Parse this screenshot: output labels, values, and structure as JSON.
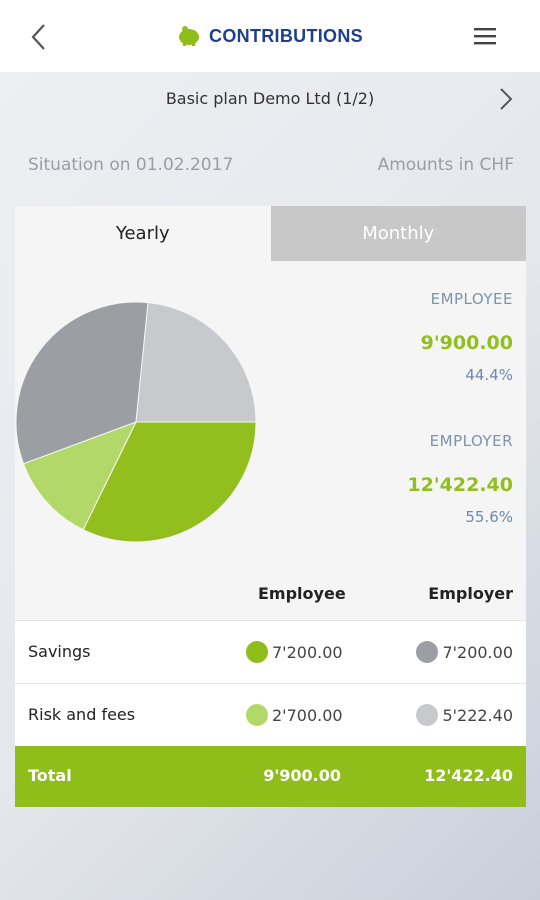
{
  "header": {
    "title": "CONTRIBUTIONS",
    "back_icon": "chevron-left-icon",
    "logo_icon": "piggy-bank-icon",
    "menu_icon": "hamburger-menu-icon"
  },
  "plan": {
    "name": "Basic plan Demo Ltd (1/2)",
    "next_icon": "chevron-right-icon"
  },
  "info": {
    "situation": "Situation on 01.02.2017",
    "amounts": "Amounts in CHF"
  },
  "tabs": [
    {
      "label": "Yearly",
      "active": true
    },
    {
      "label": "Monthly",
      "active": false
    }
  ],
  "summary": {
    "employee": {
      "label": "EMPLOYEE",
      "amount": "9'900.00",
      "percent": "44.4%"
    },
    "employer": {
      "label": "EMPLOYER",
      "amount": "12'422.40",
      "percent": "55.6%"
    }
  },
  "table": {
    "headers": [
      "Employee",
      "Employer"
    ],
    "rows": [
      {
        "label": "Savings",
        "employee": "7'200.00",
        "employer": "7'200.00",
        "employee_color": "#8fbe1a",
        "employer_color": "#9b9ea3"
      },
      {
        "label": "Risk and fees",
        "employee": "2'700.00",
        "employer": "5'222.40",
        "employee_color": "#b3d86a",
        "employer_color": "#c7c9cc"
      }
    ],
    "total": {
      "label": "Total",
      "employee": "9'900.00",
      "employer": "12'422.40"
    }
  },
  "chart_data": {
    "type": "pie",
    "slices": [
      {
        "name": "Employee Savings",
        "value": 7200.0,
        "color": "#93bf1e"
      },
      {
        "name": "Employee Risk and fees",
        "value": 2700.0,
        "color": "#b3d86a"
      },
      {
        "name": "Employer Savings",
        "value": 7200.0,
        "color": "#9b9ea3"
      },
      {
        "name": "Employer Risk and fees",
        "value": 5222.4,
        "color": "#c7c9cc"
      }
    ]
  },
  "colors": {
    "accent_green": "#8fbe1a",
    "title_blue": "#1f3f8c"
  }
}
